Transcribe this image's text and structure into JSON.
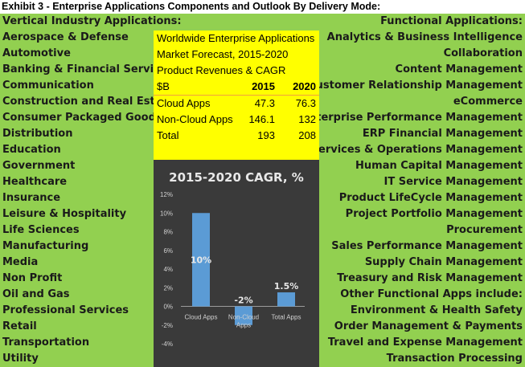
{
  "title": "Exhibit 3 - Enterprise Applications Components and Outlook By Delivery Mode:",
  "left_list": [
    "Vertical Industry Applications:",
    "Aerospace & Defense",
    "Automotive",
    "Banking & Financial Services",
    "Communication",
    "Construction and Real Estate",
    "Consumer Packaged Goods",
    "Distribution",
    "Education",
    "Government",
    "Healthcare",
    "Insurance",
    "Leisure & Hospitality",
    "Life Sciences",
    "Manufacturing",
    "Media",
    "Non Profit",
    "Oil and Gas",
    "Professional Services",
    "Retail",
    "Transportation",
    "Utility"
  ],
  "right_list": [
    "Functional Applications:",
    "Analytics & Business Intelligence",
    "Collaboration",
    "Content Management",
    "Customer Relationship Management",
    "eCommerce",
    "Enterprise Performance Management",
    "ERP Financial Management",
    "ERP Services & Operations Management",
    "Human Capital Management",
    "IT Service Management",
    "Product LifeCycle Management",
    "Project Portfolio Management",
    "Procurement",
    "Sales Performance Management",
    "Supply Chain Management",
    "Treasury and Risk Management",
    "Other Functional Apps include:",
    "Environment & Health Safety",
    "Order Management & Payments",
    "Travel and Expense Management",
    "Transaction Processing"
  ],
  "forecast_table": {
    "title_lines": [
      "Worldwide Enterprise Applications",
      "Market Forecast, 2015-2020",
      "Product Revenues & CAGR"
    ],
    "header": {
      "unit": "$B",
      "col1": "2015",
      "col2": "2020"
    },
    "rows": [
      {
        "label": "Cloud Apps",
        "v2015": "47.3",
        "v2020": "76.3"
      },
      {
        "label": "Non-Cloud Apps",
        "v2015": "146.1",
        "v2020": "132"
      },
      {
        "label": "Total",
        "v2015": "193",
        "v2020": "208"
      }
    ]
  },
  "colors": {
    "background": "#92d050",
    "table": "#ffff00",
    "chart_bg": "#3a3a3a",
    "bar": "#5b9bd5"
  },
  "chart_data": {
    "type": "bar",
    "title": "2015-2020 CAGR, %",
    "categories": [
      "Cloud Apps",
      "Non-Cloud Apps",
      "Total Apps"
    ],
    "values": [
      10,
      -2,
      1.5
    ],
    "data_labels": [
      "10%",
      "-2%",
      "1.5%"
    ],
    "yticks": [
      "12%",
      "10%",
      "8%",
      "6%",
      "4%",
      "2%",
      "0%",
      "-2%",
      "-4%"
    ],
    "ylim": [
      -4,
      12
    ],
    "grid": false,
    "xlabel": "",
    "ylabel": ""
  }
}
